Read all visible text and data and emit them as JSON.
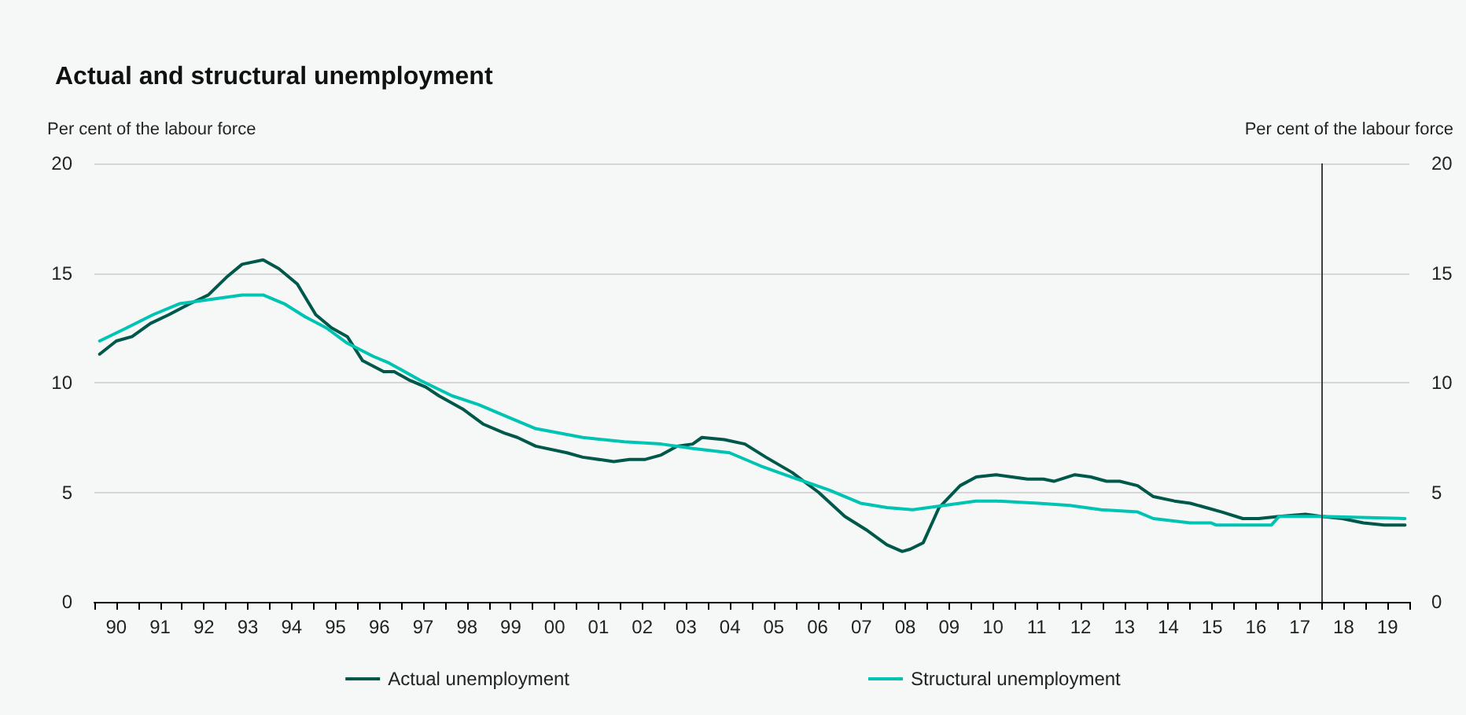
{
  "chart_data": {
    "type": "line",
    "title": "Actual and structural unemployment",
    "ylabel": "Per cent of the labour force",
    "y2label": "Per cent of the labour force",
    "xlim": [
      1989.5,
      2019.5
    ],
    "xticks": [
      {
        "value": 1989.5,
        "label": null
      },
      {
        "value": 1990.5,
        "label": null
      },
      {
        "value": 1991.5,
        "label": null
      },
      {
        "value": 1992.5,
        "label": null
      },
      {
        "value": 1993.5,
        "label": null
      },
      {
        "value": 1994.5,
        "label": null
      },
      {
        "value": 1995.5,
        "label": null
      },
      {
        "value": 1996.5,
        "label": null
      },
      {
        "value": 1997.5,
        "label": null
      },
      {
        "value": 1998.5,
        "label": null
      },
      {
        "value": 1999.5,
        "label": null
      },
      {
        "value": 2000.5,
        "label": null
      },
      {
        "value": 2001.5,
        "label": null
      },
      {
        "value": 2002.5,
        "label": null
      },
      {
        "value": 2003.5,
        "label": null
      },
      {
        "value": 2004.5,
        "label": null
      },
      {
        "value": 2005.5,
        "label": null
      },
      {
        "value": 2006.5,
        "label": null
      },
      {
        "value": 2007.5,
        "label": null
      },
      {
        "value": 2008.5,
        "label": null
      },
      {
        "value": 2009.5,
        "label": null
      },
      {
        "value": 2010.5,
        "label": null
      },
      {
        "value": 2011.5,
        "label": null
      },
      {
        "value": 2012.5,
        "label": null
      },
      {
        "value": 2013.5,
        "label": null
      },
      {
        "value": 2014.5,
        "label": null
      },
      {
        "value": 2015.5,
        "label": null
      },
      {
        "value": 2016.5,
        "label": null
      },
      {
        "value": 2017.5,
        "label": null
      },
      {
        "value": 2018.5,
        "label": null
      },
      {
        "value": 2019.5,
        "label": null
      },
      {
        "value": 1990,
        "label": "90"
      },
      {
        "value": 1991,
        "label": "91"
      },
      {
        "value": 1992,
        "label": "92"
      },
      {
        "value": 1993,
        "label": "93"
      },
      {
        "value": 1994,
        "label": "94"
      },
      {
        "value": 1995,
        "label": "95"
      },
      {
        "value": 1996,
        "label": "96"
      },
      {
        "value": 1997,
        "label": "97"
      },
      {
        "value": 1998,
        "label": "98"
      },
      {
        "value": 1999,
        "label": "99"
      },
      {
        "value": 2000,
        "label": "00"
      },
      {
        "value": 2001,
        "label": "01"
      },
      {
        "value": 2002,
        "label": "02"
      },
      {
        "value": 2003,
        "label": "03"
      },
      {
        "value": 2004,
        "label": "04"
      },
      {
        "value": 2005,
        "label": "05"
      },
      {
        "value": 2006,
        "label": "06"
      },
      {
        "value": 2007,
        "label": "07"
      },
      {
        "value": 2008,
        "label": "08"
      },
      {
        "value": 2009,
        "label": "09"
      },
      {
        "value": 2010,
        "label": "10"
      },
      {
        "value": 2011,
        "label": "11"
      },
      {
        "value": 2012,
        "label": "12"
      },
      {
        "value": 2013,
        "label": "13"
      },
      {
        "value": 2014,
        "label": "14"
      },
      {
        "value": 2015,
        "label": "15"
      },
      {
        "value": 2016,
        "label": "16"
      },
      {
        "value": 2017,
        "label": "17"
      },
      {
        "value": 2018,
        "label": "18"
      },
      {
        "value": 2019,
        "label": "19"
      }
    ],
    "ylim": [
      0,
      20
    ],
    "yticks": [
      0,
      5,
      10,
      15,
      20
    ],
    "y2lim": [
      0,
      20
    ],
    "y2ticks": [
      0,
      5,
      10,
      15,
      20
    ],
    "grid": "y",
    "legend": "bottom",
    "marker": "none",
    "line_style": "solid",
    "ref_lines": [
      {
        "axis": "x",
        "value": 2017.5,
        "color": "#404040"
      }
    ],
    "series": [
      {
        "name": "Actual unemployment",
        "color": "#00584a",
        "x": [
          1989.62,
          1990.0,
          1990.36,
          1990.78,
          1991.2,
          1991.68,
          1992.1,
          1992.51,
          1992.87,
          1993.35,
          1993.71,
          1994.13,
          1994.55,
          1994.91,
          1995.27,
          1995.62,
          1996.1,
          1996.34,
          1996.7,
          1997.06,
          1997.36,
          1997.9,
          1998.38,
          1998.85,
          1999.15,
          1999.57,
          2000.28,
          2000.64,
          2001.35,
          2001.71,
          2002.07,
          2002.43,
          2002.79,
          2003.15,
          2003.36,
          2003.87,
          2004.34,
          2004.82,
          2005.42,
          2006.02,
          2006.62,
          2007.1,
          2007.58,
          2007.93,
          2008.11,
          2008.41,
          2008.77,
          2009.25,
          2009.62,
          2010.07,
          2010.43,
          2010.79,
          2011.15,
          2011.39,
          2011.87,
          2012.23,
          2012.59,
          2012.89,
          2013.3,
          2013.66,
          2014.14,
          2014.5,
          2014.86,
          2015.22,
          2015.7,
          2016.06,
          2016.53,
          2017.13,
          2017.49,
          2017.97,
          2018.45,
          2018.93,
          2019.4
        ],
        "values": [
          11.3,
          11.9,
          12.1,
          12.7,
          13.1,
          13.6,
          14.0,
          14.8,
          15.4,
          15.6,
          15.2,
          14.5,
          13.1,
          12.5,
          12.1,
          11.0,
          10.5,
          10.5,
          10.1,
          9.8,
          9.4,
          8.8,
          8.1,
          7.7,
          7.5,
          7.1,
          6.8,
          6.6,
          6.4,
          6.5,
          6.5,
          6.7,
          7.1,
          7.2,
          7.5,
          7.4,
          7.2,
          6.6,
          5.9,
          5.0,
          3.9,
          3.3,
          2.6,
          2.3,
          2.4,
          2.7,
          4.3,
          5.3,
          5.7,
          5.8,
          5.7,
          5.6,
          5.6,
          5.5,
          5.8,
          5.7,
          5.5,
          5.5,
          5.3,
          4.8,
          4.6,
          4.5,
          4.3,
          4.1,
          3.8,
          3.8,
          3.9,
          4.0,
          3.9,
          3.8,
          3.6,
          3.5,
          3.5
        ]
      },
      {
        "name": "Structural unemployment",
        "color": "#00c4b3",
        "x": [
          1989.62,
          1990.24,
          1990.84,
          1991.44,
          1992.16,
          1992.87,
          1993.35,
          1993.83,
          1994.31,
          1994.79,
          1995.27,
          1995.86,
          1996.22,
          1996.94,
          1997.66,
          1998.26,
          1998.97,
          1999.57,
          2000.64,
          2001.59,
          2002.43,
          2003.15,
          2003.99,
          2004.7,
          2005.54,
          2006.26,
          2006.98,
          2007.58,
          2008.17,
          2008.89,
          2009.61,
          2010.07,
          2011.03,
          2011.75,
          2012.47,
          2013.3,
          2013.66,
          2014.5,
          2014.98,
          2015.1,
          2015.82,
          2016.35,
          2016.53,
          2017.49,
          2019.4
        ],
        "values": [
          11.9,
          12.5,
          13.1,
          13.6,
          13.8,
          14.0,
          14.0,
          13.6,
          13.0,
          12.5,
          11.8,
          11.2,
          10.9,
          10.1,
          9.4,
          9.0,
          8.4,
          7.9,
          7.5,
          7.3,
          7.2,
          7.0,
          6.8,
          6.2,
          5.6,
          5.1,
          4.5,
          4.3,
          4.2,
          4.4,
          4.6,
          4.6,
          4.5,
          4.4,
          4.2,
          4.1,
          3.8,
          3.6,
          3.6,
          3.5,
          3.5,
          3.5,
          3.9,
          3.9,
          3.8
        ]
      }
    ]
  }
}
